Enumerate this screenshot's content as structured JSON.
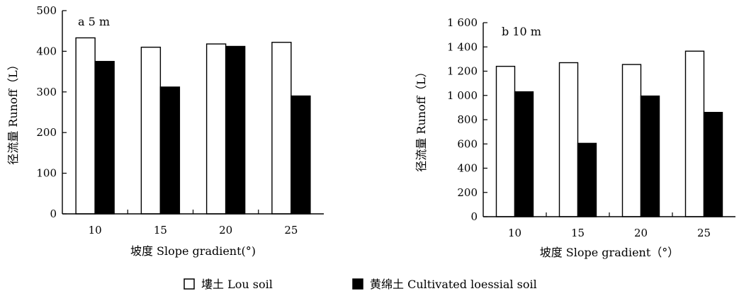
{
  "chart_data": [
    {
      "type": "bar",
      "title": "a  5 m",
      "categories": [
        "10",
        "15",
        "20",
        "25"
      ],
      "series": [
        {
          "name": "塿土 Lou soil",
          "values": [
            433,
            410,
            418,
            422
          ]
        },
        {
          "name": "黄绵土 Cultivated loessial soil",
          "values": [
            375,
            312,
            412,
            290
          ]
        }
      ],
      "xlabel": "坡度 Slope gradient(°)",
      "ylabel": "径流量 Runoff（L）",
      "ylim": [
        0,
        500
      ],
      "yticks": [
        "0",
        "100",
        "200",
        "300",
        "400",
        "500"
      ],
      "grid": false
    },
    {
      "type": "bar",
      "title": "b  10 m",
      "categories": [
        "10",
        "15",
        "20",
        "25"
      ],
      "series": [
        {
          "name": "塿土 Lou soil",
          "values": [
            1240,
            1270,
            1255,
            1365
          ]
        },
        {
          "name": "黄绵土 Cultivated loessial soil",
          "values": [
            1030,
            605,
            995,
            860
          ]
        }
      ],
      "xlabel": "坡度 Slope gradient（°）",
      "ylabel": "径流量 Runoff（L）",
      "ylim": [
        0,
        1600
      ],
      "yticks": [
        "0",
        "200",
        "400",
        "600",
        "800",
        "1 000",
        "1 200",
        "1 400",
        "1 600"
      ],
      "grid": false
    }
  ],
  "legend": {
    "placement": "bottom",
    "items": [
      {
        "label": "塿土 Lou soil",
        "color": "#ffffff"
      },
      {
        "label": "黄绵土 Cultivated loessial soil",
        "color": "#000000"
      }
    ]
  },
  "colors": {
    "series1": "#ffffff",
    "series2": "#000000",
    "stroke": "#000000"
  }
}
